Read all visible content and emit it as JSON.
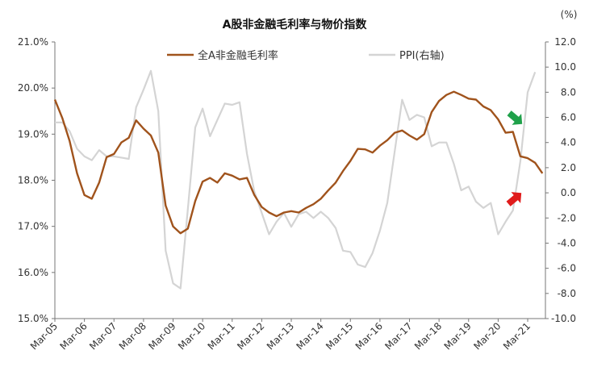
{
  "chart_data": {
    "type": "line",
    "title": "A股非金融毛利率与物价指数",
    "right_unit": "(%)",
    "left_axis": {
      "min": 15.0,
      "max": 21.0,
      "ticks": [
        "15.0%",
        "16.0%",
        "17.0%",
        "18.0%",
        "19.0%",
        "20.0%",
        "21.0%"
      ]
    },
    "right_axis": {
      "min": -10.0,
      "max": 12.0,
      "ticks": [
        "-10.0",
        "-8.0",
        "-6.0",
        "-4.0",
        "-2.0",
        "0.0",
        "2.0",
        "4.0",
        "6.0",
        "8.0",
        "10.0",
        "12.0"
      ]
    },
    "x_ticks": [
      "Mar-05",
      "Mar-06",
      "Mar-07",
      "Mar-08",
      "Mar-09",
      "Mar-10",
      "Mar-11",
      "Mar-12",
      "Mar-13",
      "Mar-14",
      "Mar-15",
      "Mar-16",
      "Mar-17",
      "Mar-18",
      "Mar-19",
      "Mar-20",
      "Mar-21"
    ],
    "legend": "top-center",
    "series": [
      {
        "name": "全A非金融毛利率",
        "axis": "left",
        "color": "#a0531c",
        "values": [
          19.75,
          19.35,
          18.85,
          18.15,
          17.68,
          17.6,
          17.95,
          18.5,
          18.57,
          18.82,
          18.92,
          19.3,
          19.12,
          18.97,
          18.6,
          17.45,
          17.0,
          16.85,
          16.95,
          17.55,
          17.97,
          18.05,
          17.95,
          18.15,
          18.1,
          18.02,
          18.05,
          17.68,
          17.42,
          17.3,
          17.22,
          17.3,
          17.33,
          17.3,
          17.4,
          17.48,
          17.6,
          17.78,
          17.95,
          18.2,
          18.42,
          18.68,
          18.67,
          18.6,
          18.75,
          18.87,
          19.03,
          19.08,
          18.97,
          18.88,
          19.0,
          19.48,
          19.72,
          19.85,
          19.92,
          19.85,
          19.77,
          19.75,
          19.6,
          19.52,
          19.32,
          19.03,
          19.05,
          18.52,
          18.48,
          18.38,
          18.15
        ],
        "x_start": 2005.25,
        "x_step": 0.25
      },
      {
        "name": "PPI(右轴)",
        "axis": "right",
        "color": "#d4d4d4",
        "values": [
          5.6,
          5.6,
          4.9,
          3.5,
          2.9,
          2.6,
          3.4,
          2.9,
          2.9,
          2.8,
          2.7,
          6.8,
          8.2,
          9.7,
          6.5,
          -4.6,
          -7.2,
          -7.6,
          -1.3,
          5.2,
          6.7,
          4.5,
          5.8,
          7.1,
          7.0,
          7.2,
          3.1,
          0.1,
          -1.6,
          -3.3,
          -2.3,
          -1.6,
          -2.7,
          -1.7,
          -1.5,
          -2.0,
          -1.5,
          -2.0,
          -2.8,
          -4.6,
          -4.7,
          -5.7,
          -5.9,
          -4.8,
          -3.0,
          -0.8,
          3.3,
          7.4,
          5.8,
          6.2,
          6.0,
          3.7,
          4.0,
          4.0,
          2.3,
          0.2,
          0.5,
          -0.7,
          -1.2,
          -0.8,
          -3.3,
          -2.3,
          -1.4,
          2.5,
          8.0,
          9.6
        ],
        "x_start": 2005.25,
        "x_step": 0.25
      }
    ],
    "annotations": [
      {
        "kind": "arrow-down",
        "color": "#1fa14a"
      },
      {
        "kind": "arrow-up",
        "color": "#e01b1b"
      }
    ]
  }
}
